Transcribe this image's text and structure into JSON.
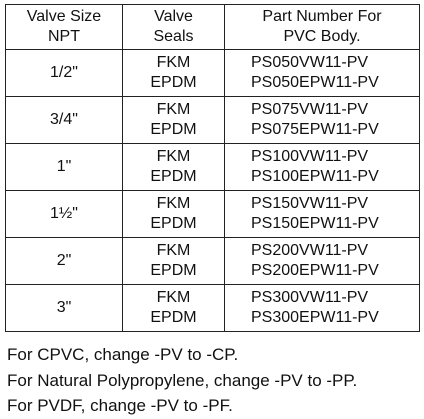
{
  "table": {
    "header": [
      [
        "Valve Size",
        "NPT"
      ],
      [
        "Valve",
        "Seals"
      ],
      [
        "Part Number For",
        "PVC Body."
      ]
    ],
    "rows": [
      {
        "size": "1/2\"",
        "seals": [
          "FKM",
          "EPDM"
        ],
        "parts": [
          "PS050VW11-PV",
          "PS050EPW11-PV"
        ]
      },
      {
        "size": "3/4\"",
        "seals": [
          "FKM",
          "EPDM"
        ],
        "parts": [
          "PS075VW11-PV",
          "PS075EPW11-PV"
        ]
      },
      {
        "size": "1\"",
        "seals": [
          "FKM",
          "EPDM"
        ],
        "parts": [
          "PS100VW11-PV",
          "PS100EPW11-PV"
        ]
      },
      {
        "size": "1½\"",
        "seals": [
          "FKM",
          "EPDM"
        ],
        "parts": [
          "PS150VW11-PV",
          "PS150EPW11-PV"
        ]
      },
      {
        "size": "2\"",
        "seals": [
          "FKM",
          "EPDM"
        ],
        "parts": [
          "PS200VW11-PV",
          "PS200EPW11-PV"
        ]
      },
      {
        "size": "3\"",
        "seals": [
          "FKM",
          "EPDM"
        ],
        "parts": [
          "PS300VW11-PV",
          "PS300EPW11-PV"
        ]
      }
    ]
  },
  "notes": [
    "For CPVC, change -PV to -CP.",
    "For Natural Polypropylene, change -PV to -PP.",
    "For PVDF, change -PV to -PF."
  ]
}
